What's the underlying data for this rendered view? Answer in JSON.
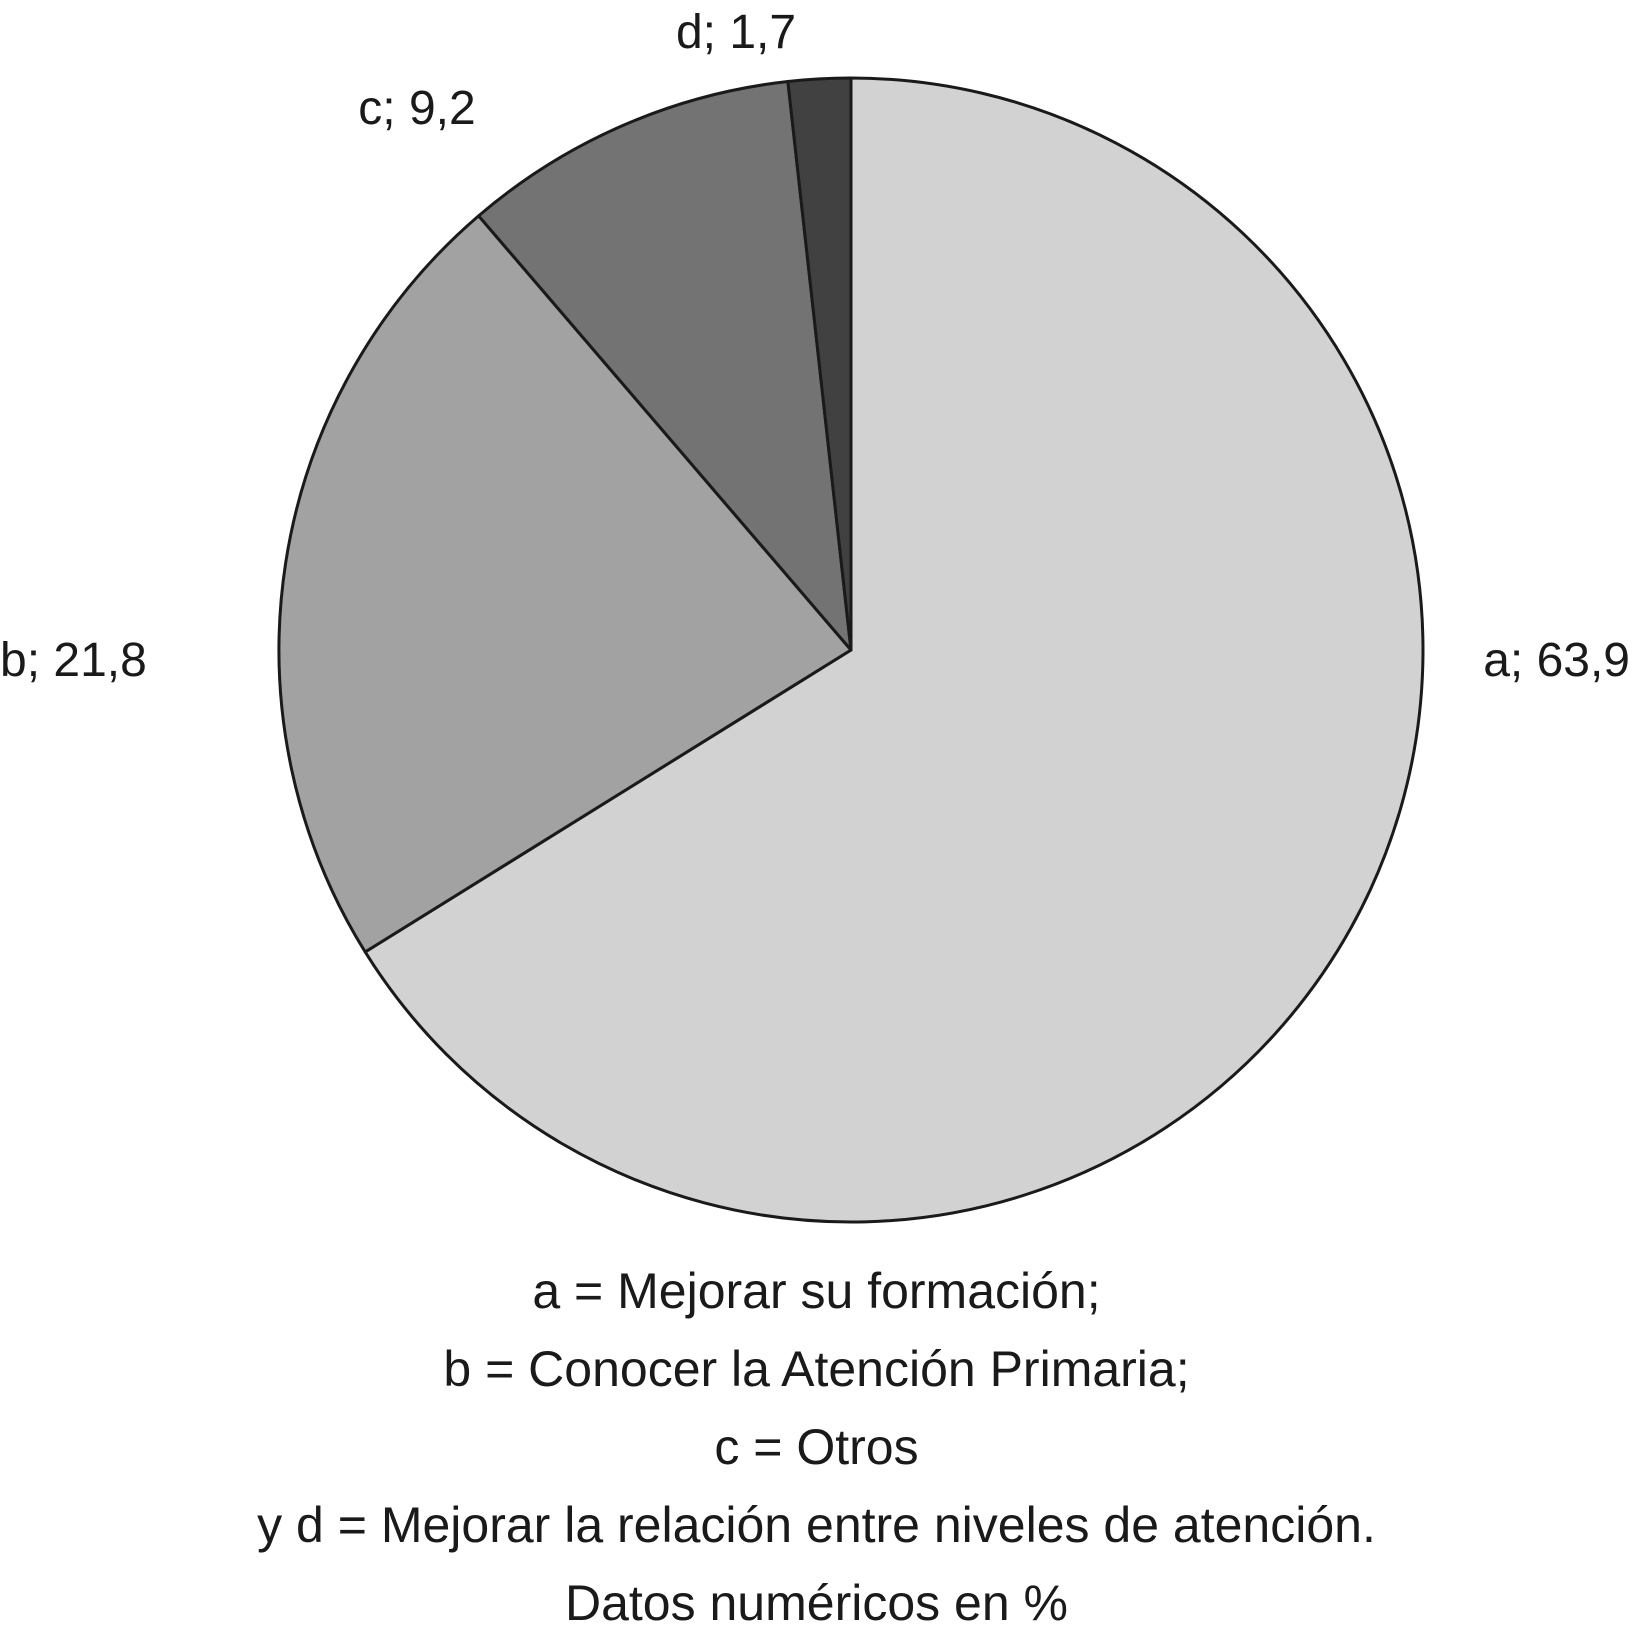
{
  "chart_data": {
    "type": "pie",
    "start_angle": "12 o'clock",
    "direction": "clockwise",
    "slices": [
      {
        "key": "a",
        "value": 63.9,
        "label": "a; 63,9",
        "color": "#d2d2d2"
      },
      {
        "key": "b",
        "value": 21.8,
        "label": "b; 21,8",
        "color": "#a2a2a2"
      },
      {
        "key": "c",
        "value": 9.2,
        "label": "c; 9,2",
        "color": "#737373"
      },
      {
        "key": "d",
        "value": 1.7,
        "label": "d; 1,7",
        "color": "#414141"
      }
    ],
    "outline_color": "#1a1a1a"
  },
  "caption": {
    "line1": "a = Mejorar su formación;",
    "line2": "b = Conocer la Atención Primaria;",
    "line3": "c = Otros",
    "line4": "y d = Mejorar la relación entre niveles de atención.",
    "line5": "Datos numéricos en %"
  }
}
